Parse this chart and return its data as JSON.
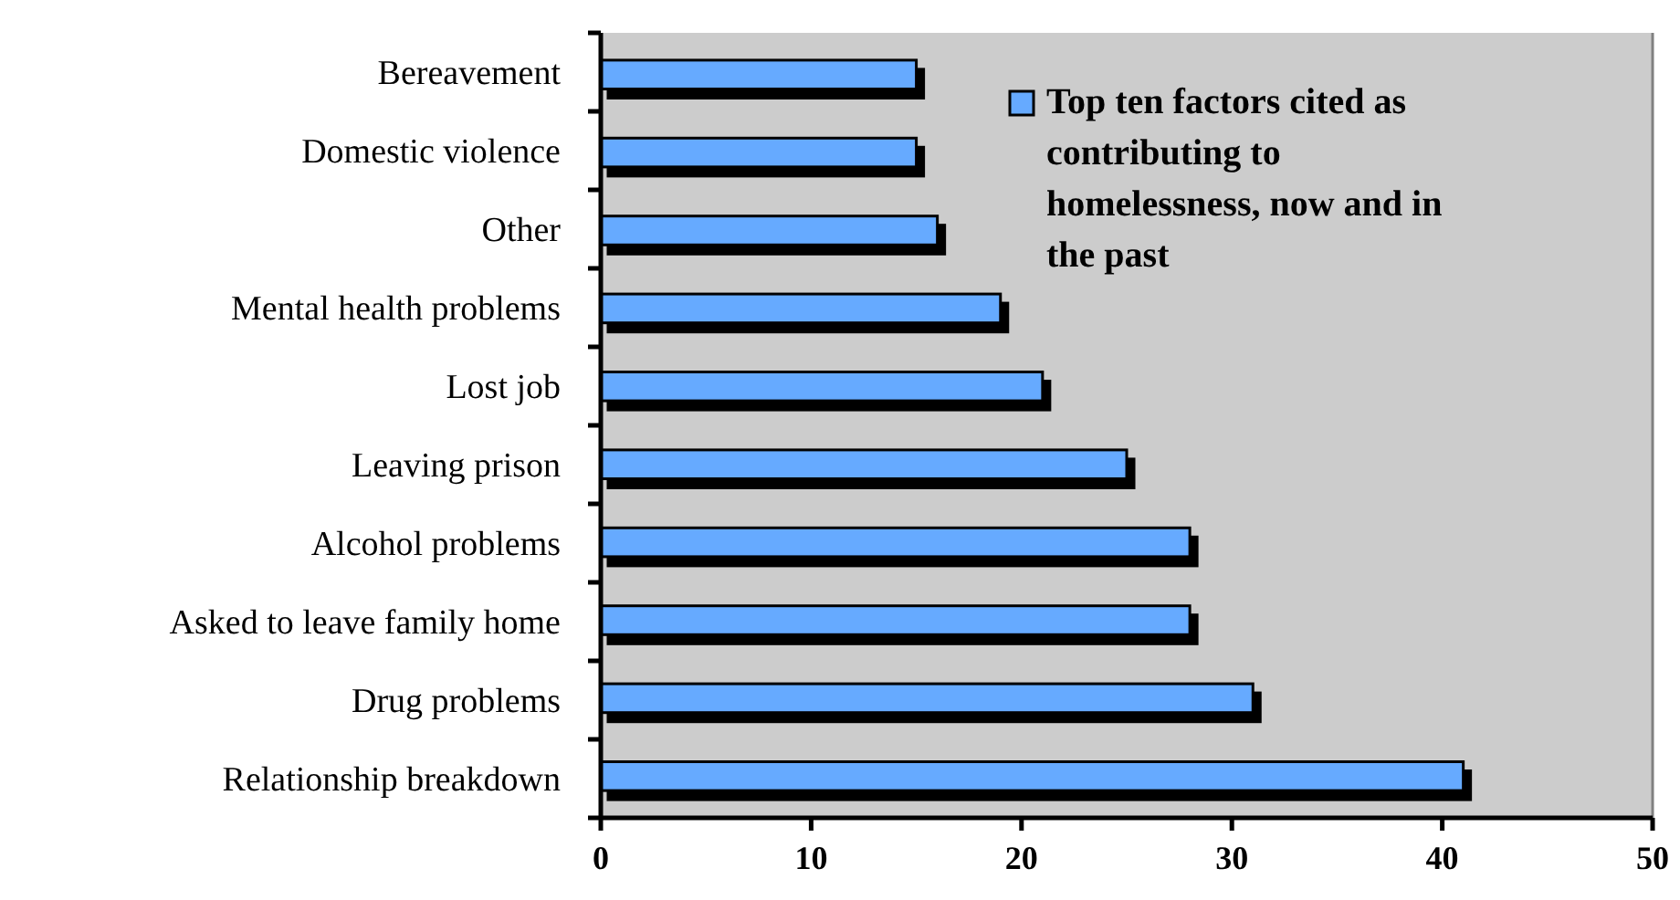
{
  "chart_data": {
    "type": "bar",
    "orientation": "horizontal",
    "categories": [
      "Bereavement",
      "Domestic violence",
      "Other",
      "Mental health problems",
      "Lost job",
      "Leaving prison",
      "Alcohol problems",
      "Asked to leave family home",
      "Drug problems",
      "Relationship breakdown"
    ],
    "series": [
      {
        "name": "Top ten factors cited as contributing to homelessness, now and in the past",
        "color": "#66aaff",
        "values": [
          15,
          15,
          16,
          19,
          21,
          25,
          28,
          28,
          31,
          41
        ]
      }
    ],
    "xlim": [
      0,
      50
    ],
    "xticks": [
      0,
      10,
      20,
      30,
      40,
      50
    ],
    "grid": false,
    "legend": "top right"
  }
}
